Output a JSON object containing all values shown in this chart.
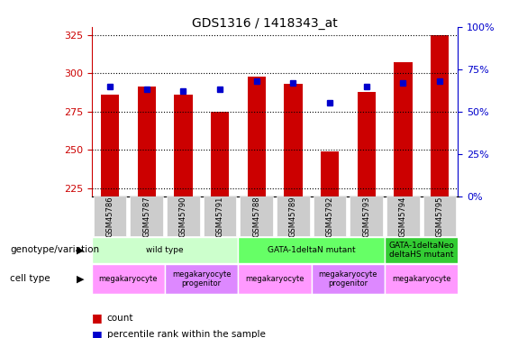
{
  "title": "GDS1316 / 1418343_at",
  "samples": [
    "GSM45786",
    "GSM45787",
    "GSM45790",
    "GSM45791",
    "GSM45788",
    "GSM45789",
    "GSM45792",
    "GSM45793",
    "GSM45794",
    "GSM45795"
  ],
  "counts": [
    286,
    291,
    286,
    275,
    298,
    293,
    249,
    288,
    307,
    325
  ],
  "percentile_ranks": [
    65,
    63,
    62,
    63,
    68,
    67,
    55,
    65,
    67,
    68
  ],
  "ylim_left": [
    220,
    330
  ],
  "ylim_right": [
    0,
    100
  ],
  "yticks_left": [
    225,
    250,
    275,
    300,
    325
  ],
  "yticks_right": [
    0,
    25,
    50,
    75,
    100
  ],
  "bar_color": "#cc0000",
  "dot_color": "#0000cc",
  "grid_color": "#000000",
  "genotype_groups": [
    {
      "label": "wild type",
      "start": 0,
      "end": 4,
      "color": "#ccffcc"
    },
    {
      "label": "GATA-1deltaN mutant",
      "start": 4,
      "end": 8,
      "color": "#66ff66"
    },
    {
      "label": "GATA-1deltaNeo\ndeltaHS mutant",
      "start": 8,
      "end": 10,
      "color": "#33cc33"
    }
  ],
  "cell_type_groups": [
    {
      "label": "megakaryocyte",
      "start": 0,
      "end": 2,
      "color": "#ff99ff"
    },
    {
      "label": "megakaryocyte\nprogenitor",
      "start": 2,
      "end": 4,
      "color": "#dd88ff"
    },
    {
      "label": "megakaryocyte",
      "start": 4,
      "end": 6,
      "color": "#ff99ff"
    },
    {
      "label": "megakaryocyte\nprogenitor",
      "start": 6,
      "end": 8,
      "color": "#dd88ff"
    },
    {
      "label": "megakaryocyte",
      "start": 8,
      "end": 10,
      "color": "#ff99ff"
    }
  ],
  "xlabel_color": "#888888",
  "left_axis_color": "#cc0000",
  "right_axis_color": "#0000cc",
  "background_color": "#ffffff",
  "plot_bg_color": "#ffffff"
}
